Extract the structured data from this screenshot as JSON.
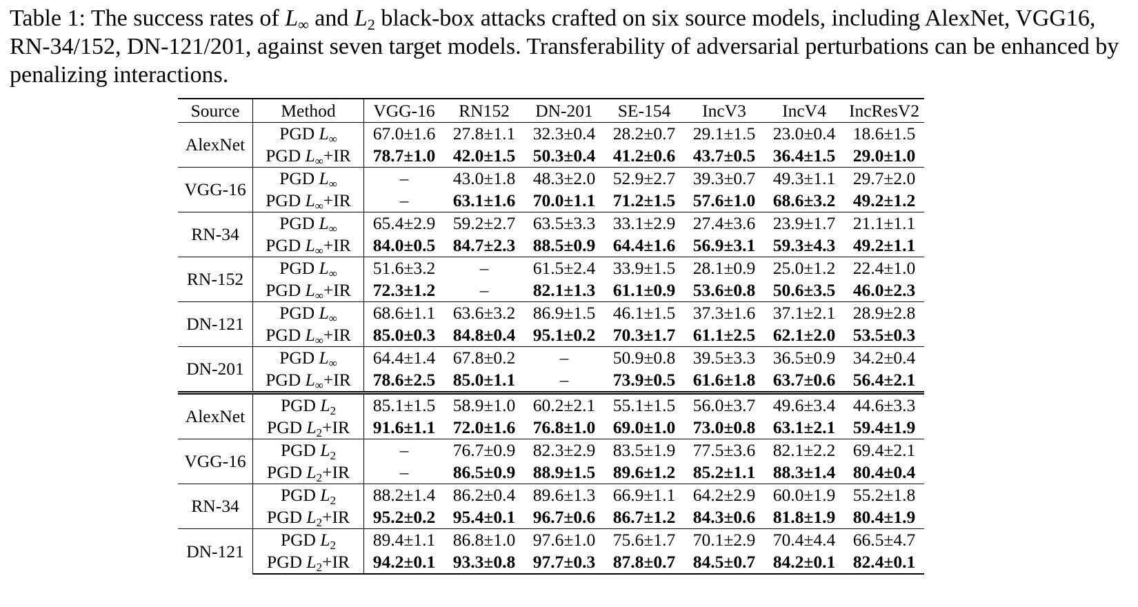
{
  "caption": {
    "prefix": "Table 1:  The success rates of ",
    "l_inf": "L",
    "inf_sub": "∞",
    "and": " and ",
    "l_2": "L",
    "two_sub": "2",
    "rest": " black-box attacks crafted on six source models, including AlexNet, VGG16, RN-34/152, DN-121/201, against seven target models. Transferability of adversarial perturbations can be enhanced by penalizing interactions."
  },
  "table": {
    "headers": [
      "Source",
      "Method",
      "VGG-16",
      "RN152",
      "DN-201",
      "SE-154",
      "IncV3",
      "IncV4",
      "IncResV2"
    ],
    "groups": [
      {
        "source": "AlexNet",
        "norm": "∞",
        "rows": [
          {
            "method": "PGD",
            "ir": "",
            "bold": false,
            "values": [
              "67.0±1.6",
              "27.8±1.1",
              "32.3±0.4",
              "28.2±0.7",
              "29.1±1.5",
              "23.0±0.4",
              "18.6±1.5"
            ]
          },
          {
            "method": "PGD",
            "ir": "+IR",
            "bold": true,
            "values": [
              "78.7±1.0",
              "42.0±1.5",
              "50.3±0.4",
              "41.2±0.6",
              "43.7±0.5",
              "36.4±1.5",
              "29.0±1.0"
            ]
          }
        ]
      },
      {
        "source": "VGG-16",
        "norm": "∞",
        "rows": [
          {
            "method": "PGD",
            "ir": "",
            "bold": false,
            "values": [
              "–",
              "43.0±1.8",
              "48.3±2.0",
              "52.9±2.7",
              "39.3±0.7",
              "49.3±1.1",
              "29.7±2.0"
            ]
          },
          {
            "method": "PGD",
            "ir": "+IR",
            "bold": true,
            "values": [
              "–",
              "63.1±1.6",
              "70.0±1.1",
              "71.2±1.5",
              "57.6±1.0",
              "68.6±3.2",
              "49.2±1.2"
            ]
          }
        ]
      },
      {
        "source": "RN-34",
        "norm": "∞",
        "rows": [
          {
            "method": "PGD",
            "ir": "",
            "bold": false,
            "values": [
              "65.4±2.9",
              "59.2±2.7",
              "63.5±3.3",
              "33.1±2.9",
              "27.4±3.6",
              "23.9±1.7",
              "21.1±1.1"
            ]
          },
          {
            "method": "PGD",
            "ir": "+IR",
            "bold": true,
            "values": [
              "84.0±0.5",
              "84.7±2.3",
              "88.5±0.9",
              "64.4±1.6",
              "56.9±3.1",
              "59.3±4.3",
              "49.2±1.1"
            ]
          }
        ]
      },
      {
        "source": "RN-152",
        "norm": "∞",
        "rows": [
          {
            "method": "PGD",
            "ir": "",
            "bold": false,
            "values": [
              "51.6±3.2",
              "–",
              "61.5±2.4",
              "33.9±1.5",
              "28.1±0.9",
              "25.0±1.2",
              "22.4±1.0"
            ]
          },
          {
            "method": "PGD",
            "ir": "+IR",
            "bold": true,
            "values": [
              "72.3±1.2",
              "–",
              "82.1±1.3",
              "61.1±0.9",
              "53.6±0.8",
              "50.6±3.5",
              "46.0±2.3"
            ]
          }
        ]
      },
      {
        "source": "DN-121",
        "norm": "∞",
        "rows": [
          {
            "method": "PGD",
            "ir": "",
            "bold": false,
            "values": [
              "68.6±1.1",
              "63.6±3.2",
              "86.9±1.5",
              "46.1±1.5",
              "37.3±1.6",
              "37.1±2.1",
              "28.9±2.8"
            ]
          },
          {
            "method": "PGD",
            "ir": "+IR",
            "bold": true,
            "values": [
              "85.0±0.3",
              "84.8±0.4",
              "95.1±0.2",
              "70.3±1.7",
              "61.1±2.5",
              "62.1±2.0",
              "53.5±0.3"
            ]
          }
        ]
      },
      {
        "source": "DN-201",
        "norm": "∞",
        "rows": [
          {
            "method": "PGD",
            "ir": "",
            "bold": false,
            "values": [
              "64.4±1.4",
              "67.8±0.2",
              "–",
              "50.9±0.8",
              "39.5±3.3",
              "36.5±0.9",
              "34.2±0.4"
            ]
          },
          {
            "method": "PGD",
            "ir": "+IR",
            "bold": true,
            "values": [
              "78.6±2.5",
              "85.0±1.1",
              "–",
              "73.9±0.5",
              "61.6±1.8",
              "63.7±0.6",
              "56.4±2.1"
            ]
          }
        ]
      },
      {
        "source": "AlexNet",
        "norm": "2",
        "rows": [
          {
            "method": "PGD",
            "ir": "",
            "bold": false,
            "values": [
              "85.1±1.5",
              "58.9±1.0",
              "60.2±2.1",
              "55.1±1.5",
              "56.0±3.7",
              "49.6±3.4",
              "44.6±3.3"
            ]
          },
          {
            "method": "PGD",
            "ir": "+IR",
            "bold": true,
            "values": [
              "91.6±1.1",
              "72.0±1.6",
              "76.8±1.0",
              "69.0±1.0",
              "73.0±0.8",
              "63.1±2.1",
              "59.4±1.9"
            ]
          }
        ]
      },
      {
        "source": "VGG-16",
        "norm": "2",
        "rows": [
          {
            "method": "PGD",
            "ir": "",
            "bold": false,
            "values": [
              "–",
              "76.7±0.9",
              "82.3±2.9",
              "83.5±1.9",
              "77.5±3.6",
              "82.1±2.2",
              "69.4±2.1"
            ]
          },
          {
            "method": "PGD",
            "ir": "+IR",
            "bold": true,
            "values": [
              "–",
              "86.5±0.9",
              "88.9±1.5",
              "89.6±1.2",
              "85.2±1.1",
              "88.3±1.4",
              "80.4±0.4"
            ]
          }
        ]
      },
      {
        "source": "RN-34",
        "norm": "2",
        "rows": [
          {
            "method": "PGD",
            "ir": "",
            "bold": false,
            "values": [
              "88.2±1.4",
              "86.2±0.4",
              "89.6±1.3",
              "66.9±1.1",
              "64.2±2.9",
              "60.0±1.9",
              "55.2±1.8"
            ]
          },
          {
            "method": "PGD",
            "ir": "+IR",
            "bold": true,
            "values": [
              "95.2±0.2",
              "95.4±0.1",
              "96.7±0.6",
              "86.7±1.2",
              "84.3±0.6",
              "81.8±1.9",
              "80.4±1.9"
            ]
          }
        ]
      },
      {
        "source": "DN-121",
        "norm": "2",
        "rows": [
          {
            "method": "PGD",
            "ir": "",
            "bold": false,
            "values": [
              "89.4±1.1",
              "86.8±1.0",
              "97.6±1.0",
              "75.6±1.7",
              "70.1±2.9",
              "70.4±4.4",
              "66.5±4.7"
            ]
          },
          {
            "method": "PGD",
            "ir": "+IR",
            "bold": true,
            "values": [
              "94.2±0.1",
              "93.3±0.8",
              "97.7±0.3",
              "87.8±0.7",
              "84.5±0.7",
              "84.2±0.1",
              "82.4±0.1"
            ]
          }
        ]
      }
    ]
  }
}
